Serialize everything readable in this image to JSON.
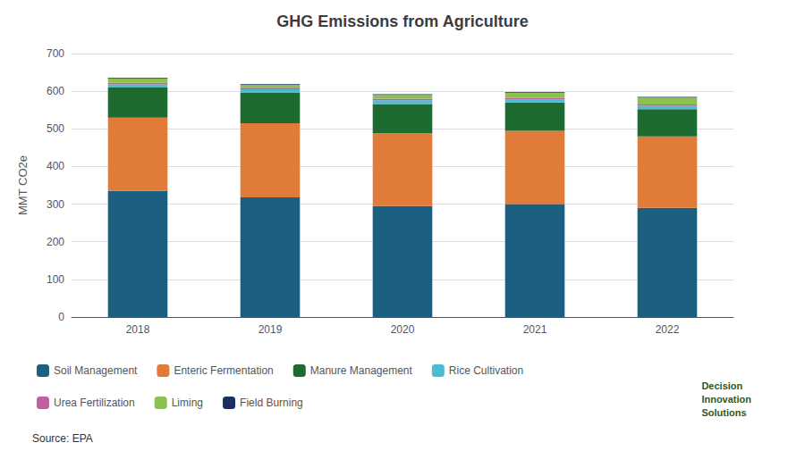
{
  "chart_data": {
    "type": "bar",
    "title": "GHG Emissions from Agriculture",
    "ylabel": "MMT CO2e",
    "categories": [
      "2018",
      "2019",
      "2020",
      "2021",
      "2022"
    ],
    "series": [
      {
        "name": "Soil Management",
        "color": "#1B6080",
        "values": [
          335,
          318,
          295,
          300,
          290
        ]
      },
      {
        "name": "Enteric Fermentation",
        "color": "#E07B39",
        "values": [
          195,
          197,
          193,
          195,
          190
        ]
      },
      {
        "name": "Manure Management",
        "color": "#1E6B30",
        "values": [
          80,
          82,
          78,
          75,
          72
        ]
      },
      {
        "name": "Rice Cultivation",
        "color": "#4BBCD4",
        "values": [
          8,
          8,
          10,
          8,
          9
        ]
      },
      {
        "name": "Urea Fertilization",
        "color": "#C060A0",
        "values": [
          4,
          4,
          4,
          4,
          4
        ]
      },
      {
        "name": "Liming",
        "color": "#8CC050",
        "values": [
          12,
          8,
          10,
          14,
          18
        ]
      },
      {
        "name": "Field Burning",
        "color": "#1B3060",
        "values": [
          2,
          2,
          2,
          2,
          2
        ]
      }
    ],
    "stacked": true,
    "ylim": [
      0,
      700
    ],
    "yticks": [
      0,
      100,
      200,
      300,
      400,
      500,
      600,
      700
    ],
    "grid": true,
    "legend": "bottom",
    "annotations": [
      "Source: EPA",
      "Decision\nInnovation\nSolutions"
    ]
  }
}
